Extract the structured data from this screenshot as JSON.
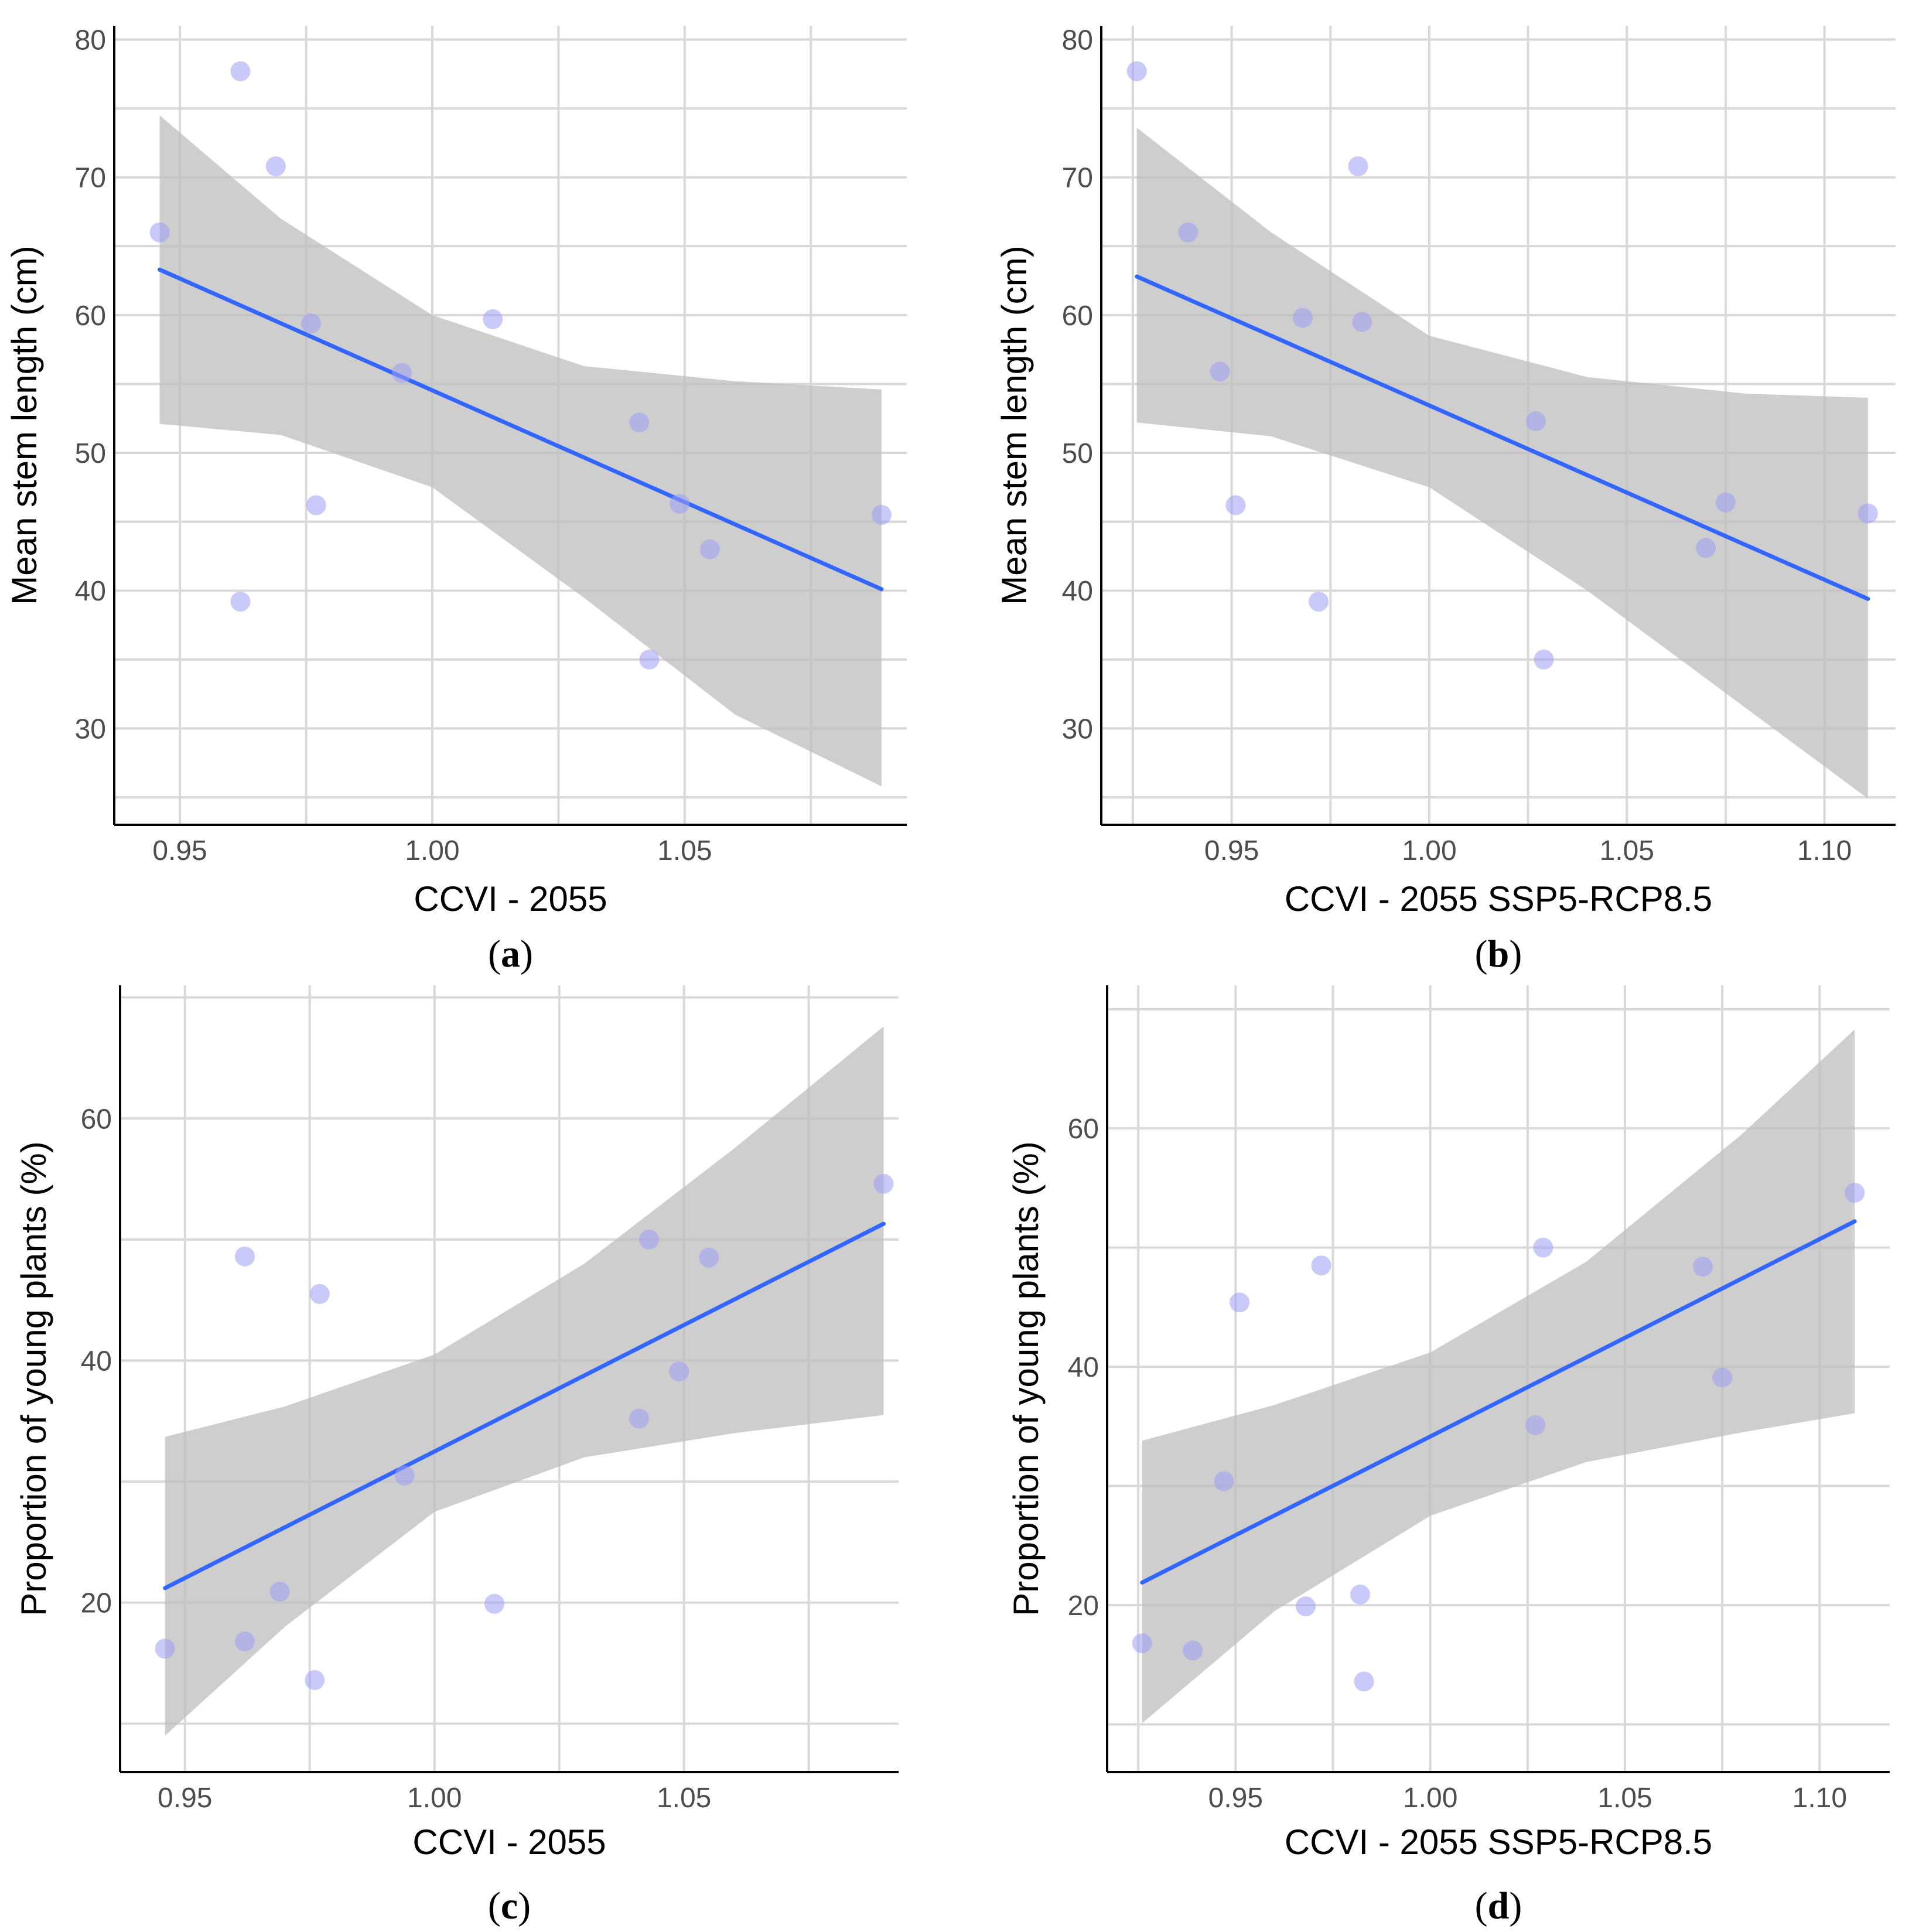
{
  "figure": {
    "panel_count": 4,
    "colors": {
      "point": "#9c9cf5",
      "trend_line": "#3366ff",
      "ribbon": "#bebebe",
      "grid": "#d9d9d9",
      "axis": "#000000"
    }
  },
  "chart_data": [
    {
      "type": "scatter",
      "caption": "a",
      "xlabel": "CCVI - 2055",
      "ylabel": "Mean stem length (cm)",
      "xlim": [
        0.937,
        1.094
      ],
      "ylim": [
        23,
        81
      ],
      "xticks": [
        0.95,
        1.0,
        1.05
      ],
      "xtick_labels": [
        "0.95",
        "1.00",
        "1.05"
      ],
      "yticks": [
        30,
        40,
        50,
        60,
        70,
        80
      ],
      "ytick_labels": [
        "30",
        "40",
        "50",
        "60",
        "70",
        "80"
      ],
      "points": {
        "x": [
          0.946,
          0.962,
          0.969,
          0.976,
          0.977,
          0.962,
          0.994,
          1.012,
          1.041,
          1.043,
          1.049,
          1.055,
          1.089
        ],
        "y": [
          66.0,
          77.7,
          70.8,
          59.4,
          46.2,
          39.2,
          55.8,
          59.7,
          52.2,
          35.0,
          46.3,
          43.0,
          45.5
        ]
      },
      "trend": {
        "x": [
          0.946,
          1.089
        ],
        "y": [
          63.3,
          40.1
        ]
      },
      "ribbon": {
        "x": [
          0.946,
          0.97,
          1.0,
          1.03,
          1.06,
          1.089
        ],
        "upper": [
          74.5,
          67.0,
          60.0,
          56.3,
          55.2,
          54.6
        ],
        "lower": [
          52.1,
          51.3,
          47.5,
          39.5,
          31.0,
          25.8
        ]
      }
    },
    {
      "type": "scatter",
      "caption": "b",
      "xlabel": "CCVI - 2055 SSP5-RCP8.5",
      "ylabel": "Mean stem length (cm)",
      "xlim": [
        0.917,
        1.118
      ],
      "ylim": [
        23,
        81
      ],
      "xticks": [
        0.95,
        1.0,
        1.05,
        1.1
      ],
      "xtick_labels": [
        "0.95",
        "1.00",
        "1.05",
        "1.10"
      ],
      "yticks": [
        30,
        40,
        50,
        60,
        70,
        80
      ],
      "ytick_labels": [
        "30",
        "40",
        "50",
        "60",
        "70",
        "80"
      ],
      "points": {
        "x": [
          0.926,
          0.939,
          0.947,
          0.951,
          0.968,
          0.972,
          0.982,
          0.983,
          1.027,
          1.029,
          1.07,
          1.075,
          1.111
        ],
        "y": [
          77.7,
          66.0,
          55.9,
          46.2,
          59.8,
          39.2,
          70.8,
          59.5,
          52.3,
          35.0,
          43.1,
          46.4,
          45.6
        ]
      },
      "trend": {
        "x": [
          0.926,
          1.111
        ],
        "y": [
          62.8,
          39.4
        ]
      },
      "ribbon": {
        "x": [
          0.926,
          0.96,
          1.0,
          1.04,
          1.08,
          1.111
        ],
        "upper": [
          73.6,
          66.0,
          58.5,
          55.5,
          54.3,
          54.0
        ],
        "lower": [
          52.2,
          51.2,
          47.5,
          40.0,
          31.5,
          24.9
        ]
      }
    },
    {
      "type": "scatter",
      "caption": "c",
      "xlabel": "CCVI - 2055",
      "ylabel": "Proportion of young plants (%)",
      "xlim": [
        0.937,
        1.093
      ],
      "ylim": [
        6,
        71
      ],
      "xticks": [
        0.95,
        1.0,
        1.05
      ],
      "xtick_labels": [
        "0.95",
        "1.00",
        "1.05"
      ],
      "yticks": [
        20,
        40,
        60
      ],
      "ytick_labels": [
        "20",
        "40",
        "60"
      ],
      "points": {
        "x": [
          0.946,
          0.962,
          0.962,
          0.969,
          0.976,
          0.977,
          0.994,
          1.012,
          1.041,
          1.043,
          1.049,
          1.055,
          1.09
        ],
        "y": [
          16.2,
          48.6,
          16.8,
          20.9,
          13.6,
          45.5,
          30.5,
          19.9,
          35.2,
          50.0,
          39.1,
          48.5,
          54.6
        ]
      },
      "trend": {
        "x": [
          0.946,
          1.09
        ],
        "y": [
          21.2,
          51.3
        ]
      },
      "ribbon": {
        "x": [
          0.946,
          0.97,
          1.0,
          1.03,
          1.06,
          1.09
        ],
        "upper": [
          33.7,
          36.2,
          40.5,
          48.0,
          57.5,
          67.6
        ],
        "lower": [
          9.0,
          18.0,
          27.5,
          32.0,
          34.0,
          35.5
        ]
      }
    },
    {
      "type": "scatter",
      "caption": "d",
      "xlabel": "CCVI - 2055 SSP5-RCP8.5",
      "ylabel": "Proportion of young plants (%)",
      "xlim": [
        0.917,
        1.118
      ],
      "ylim": [
        6,
        72
      ],
      "xticks": [
        0.95,
        1.0,
        1.05,
        1.1
      ],
      "xtick_labels": [
        "0.95",
        "1.00",
        "1.05",
        "1.10"
      ],
      "yticks": [
        20,
        40,
        60
      ],
      "ytick_labels": [
        "20",
        "40",
        "60"
      ],
      "points": {
        "x": [
          0.926,
          0.939,
          0.947,
          0.951,
          0.968,
          0.972,
          0.982,
          0.983,
          1.027,
          1.029,
          1.07,
          1.075,
          1.109
        ],
        "y": [
          16.8,
          16.2,
          30.4,
          45.4,
          19.9,
          48.5,
          20.9,
          13.6,
          35.1,
          50.0,
          48.4,
          39.1,
          54.6
        ]
      },
      "trend": {
        "x": [
          0.926,
          1.109
        ],
        "y": [
          21.9,
          52.2
        ]
      },
      "ribbon": {
        "x": [
          0.926,
          0.96,
          1.0,
          1.04,
          1.08,
          1.109
        ],
        "upper": [
          33.8,
          36.8,
          41.2,
          48.8,
          59.5,
          68.3
        ],
        "lower": [
          10.1,
          19.5,
          27.5,
          32.0,
          34.5,
          36.1
        ]
      }
    }
  ]
}
